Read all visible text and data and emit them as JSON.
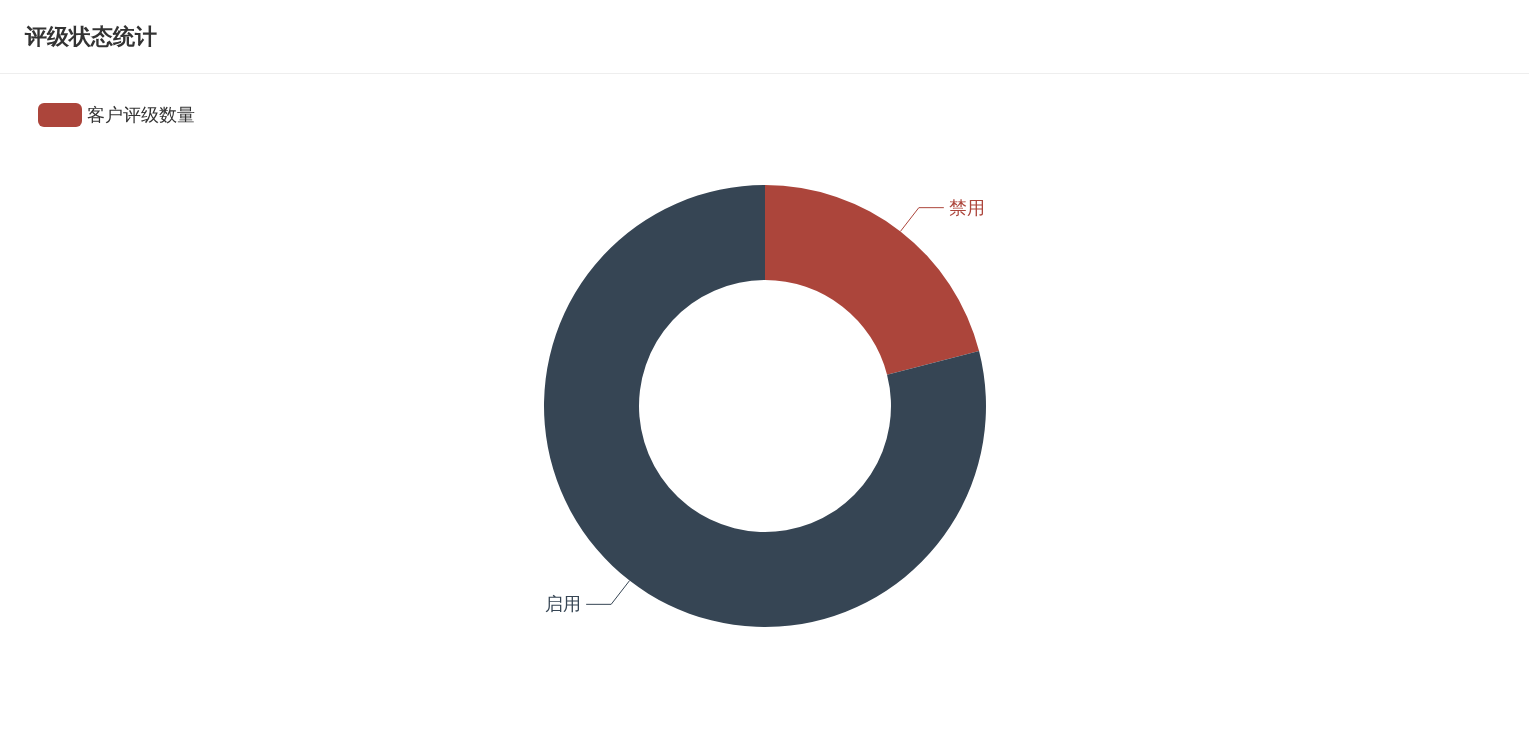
{
  "chart_data": {
    "type": "donut",
    "title": "评级状态统计",
    "categories": [
      "禁用",
      "启用"
    ],
    "series": [
      {
        "name": "客户评级数量",
        "values": [
          21,
          79
        ],
        "colors": [
          "#ac453b",
          "#364554"
        ]
      }
    ],
    "legend": "top left"
  }
}
